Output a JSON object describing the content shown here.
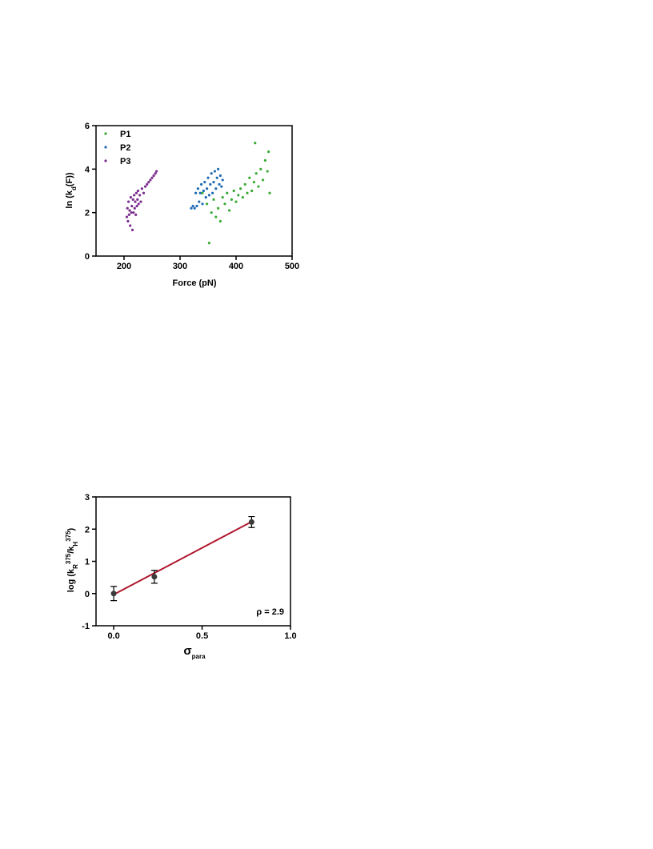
{
  "chart_data": [
    {
      "type": "scatter",
      "xlabel": [
        {
          "text": "Force (pN)"
        }
      ],
      "ylabel": [
        {
          "text": "ln (k"
        },
        {
          "text": "d",
          "pos": "sub"
        },
        {
          "text": "(F))"
        }
      ],
      "xlim": [
        150,
        500
      ],
      "ylim": [
        0,
        6
      ],
      "xticks": [
        200,
        300,
        400,
        500
      ],
      "yticks": [
        0,
        2,
        4,
        6
      ],
      "legend": "top-left",
      "series": [
        {
          "name": "P1",
          "color": "#3aaa35",
          "x": [
            340,
            348,
            352,
            356,
            360,
            364,
            368,
            372,
            376,
            380,
            384,
            388,
            392,
            396,
            400,
            404,
            408,
            412,
            416,
            420,
            424,
            428,
            432,
            434,
            436,
            440,
            444,
            448,
            452,
            456,
            458,
            460
          ],
          "values": [
            2.9,
            2.4,
            0.6,
            2.0,
            2.6,
            1.8,
            2.2,
            1.6,
            2.7,
            2.4,
            2.9,
            2.1,
            2.6,
            3.0,
            2.5,
            2.8,
            3.1,
            2.7,
            3.3,
            2.9,
            3.6,
            3.0,
            3.4,
            5.2,
            3.8,
            3.2,
            4.0,
            3.5,
            4.4,
            3.9,
            4.8,
            2.9
          ]
        },
        {
          "name": "P2",
          "color": "#1f6bb5",
          "x": [
            320,
            323,
            326,
            328,
            330,
            332,
            334,
            336,
            338,
            340,
            342,
            344,
            346,
            348,
            350,
            352,
            354,
            356,
            358,
            360,
            362,
            364,
            366,
            368,
            370,
            372,
            374,
            376
          ],
          "values": [
            2.2,
            2.3,
            2.2,
            2.9,
            2.3,
            3.1,
            2.5,
            2.9,
            3.3,
            2.4,
            3.0,
            3.4,
            2.7,
            3.1,
            3.6,
            2.8,
            3.3,
            3.8,
            2.9,
            3.4,
            3.9,
            3.1,
            3.6,
            4.0,
            3.3,
            3.7,
            3.2,
            3.5
          ]
        },
        {
          "name": "P3",
          "color": "#7b2d8e",
          "x": [
            205,
            206,
            207,
            208,
            209,
            210,
            211,
            212,
            213,
            214,
            215,
            216,
            217,
            218,
            219,
            220,
            221,
            222,
            223,
            224,
            225,
            226,
            228,
            230,
            232,
            235,
            238,
            241,
            244,
            247,
            250,
            253,
            256,
            258
          ],
          "values": [
            1.8,
            2.2,
            1.6,
            2.5,
            1.9,
            2.1,
            1.4,
            2.7,
            2.0,
            2.3,
            1.2,
            2.6,
            2.0,
            2.8,
            2.2,
            2.5,
            1.9,
            2.9,
            2.3,
            2.6,
            3.0,
            2.4,
            2.8,
            2.5,
            3.1,
            2.9,
            3.2,
            3.3,
            3.4,
            3.5,
            3.6,
            3.7,
            3.8,
            3.9
          ]
        }
      ]
    },
    {
      "type": "scatter",
      "xlabel": [
        {
          "text": "σ"
        },
        {
          "text": "para",
          "pos": "sub"
        }
      ],
      "ylabel": [
        {
          "text": "log (k"
        },
        {
          "text": "R",
          "pos": "sub"
        },
        {
          "text": "375",
          "pos": "sup"
        },
        {
          "text": "/k"
        },
        {
          "text": "H",
          "pos": "sub"
        },
        {
          "text": "375",
          "pos": "sup"
        },
        {
          "text": ")"
        }
      ],
      "xlim": [
        -0.1,
        1.0
      ],
      "ylim": [
        -1,
        3
      ],
      "xticks": [
        {
          "value": 0,
          "label": "0.0"
        },
        {
          "value": 0.5,
          "label": "0.5"
        },
        {
          "value": 1,
          "label": "1.0"
        }
      ],
      "yticks": [
        -1,
        0,
        1,
        2,
        3
      ],
      "annotation": "ρ = 2.9",
      "fit_line": {
        "x": [
          0,
          0.78
        ],
        "values": [
          -0.03,
          2.23
        ],
        "color": "#b0172e"
      },
      "series": [
        {
          "color": "#3a3a3a",
          "x": [
            0,
            0.23,
            0.78
          ],
          "values": [
            0,
            0.52,
            2.22
          ],
          "errors": [
            0.22,
            0.2,
            0.17
          ]
        }
      ]
    }
  ]
}
